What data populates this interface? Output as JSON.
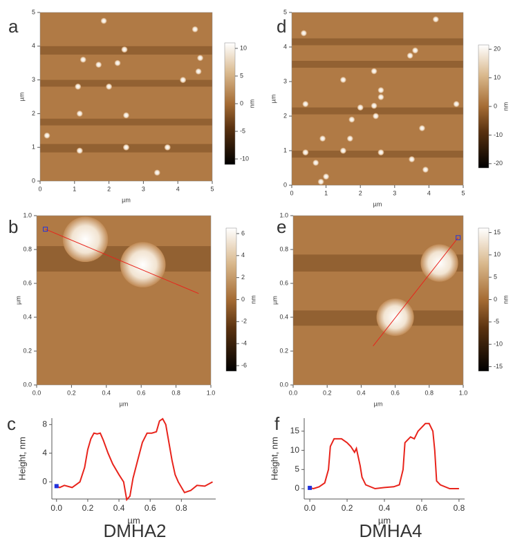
{
  "chart_data": [
    {
      "type": "image",
      "panel": "a",
      "xlim": [
        0,
        5
      ],
      "ylim": [
        0,
        5
      ],
      "xticks": [
        0,
        1,
        2,
        3,
        4,
        5
      ],
      "yticks": [
        0,
        1,
        2,
        3,
        4,
        5
      ],
      "xlabel": "µm",
      "ylabel": "µm",
      "colorbar": {
        "lim": [
          -11,
          11
        ],
        "ticks": [
          10,
          5,
          0,
          -5,
          -10
        ],
        "label": "nm"
      }
    },
    {
      "type": "image",
      "panel": "d",
      "xlim": [
        0,
        5
      ],
      "ylim": [
        0,
        5
      ],
      "xticks": [
        0,
        1,
        2,
        3,
        4,
        5
      ],
      "yticks": [
        0,
        1,
        2,
        3,
        4,
        5
      ],
      "xlabel": "µm",
      "ylabel": "µm",
      "colorbar": {
        "lim": [
          -21.5,
          21.5
        ],
        "ticks": [
          20,
          10,
          0,
          -10,
          -20
        ],
        "label": "nm"
      }
    },
    {
      "type": "image",
      "panel": "b",
      "xlim": [
        0,
        1
      ],
      "ylim": [
        0,
        1
      ],
      "xticks": [
        {
          "value": 0,
          "label": "0.0"
        },
        0.2,
        0.4,
        0.6,
        0.8,
        {
          "value": 1,
          "label": "1.0"
        }
      ],
      "yticks": [
        {
          "value": 0,
          "label": "0.0"
        },
        0.2,
        0.4,
        0.6,
        0.8,
        {
          "value": 1,
          "label": "1.0"
        }
      ],
      "xlabel": "µm",
      "ylabel": "µm",
      "colorbar": {
        "lim": [
          -6.5,
          6.5
        ],
        "ticks": [
          6,
          4,
          2,
          0,
          -2,
          -4,
          -6
        ],
        "label": "nm"
      }
    },
    {
      "type": "image",
      "panel": "e",
      "xlim": [
        0,
        1
      ],
      "ylim": [
        0,
        1
      ],
      "xticks": [
        {
          "value": 0,
          "label": "0.0"
        },
        0.2,
        0.4,
        0.6,
        0.8,
        {
          "value": 1,
          "label": "1.0"
        }
      ],
      "yticks": [
        {
          "value": 0,
          "label": "0.0"
        },
        0.2,
        0.4,
        0.6,
        0.8,
        {
          "value": 1,
          "label": "1.0"
        }
      ],
      "xlabel": "µm",
      "ylabel": "µm",
      "colorbar": {
        "lim": [
          -16,
          16
        ],
        "ticks": [
          15,
          10,
          5,
          0,
          -5,
          -10,
          -15
        ],
        "label": "nm"
      }
    },
    {
      "type": "line",
      "panel": "c",
      "caption": "DMHA2",
      "xlabel": "µm",
      "ylabel": "Height, nm",
      "color": "#e8231b",
      "xlim": [
        -0.03,
        1.02
      ],
      "ylim": [
        -2.4,
        8.9
      ],
      "xticks": [
        {
          "value": 0,
          "label": "0.0"
        },
        0.2,
        0.4,
        0.6,
        0.8
      ],
      "yticks": [
        0,
        4,
        8
      ],
      "x": [
        0,
        0.02,
        0.05,
        0.1,
        0.15,
        0.18,
        0.2,
        0.22,
        0.24,
        0.26,
        0.28,
        0.3,
        0.33,
        0.36,
        0.4,
        0.43,
        0.45,
        0.47,
        0.49,
        0.52,
        0.55,
        0.58,
        0.61,
        0.64,
        0.66,
        0.68,
        0.7,
        0.72,
        0.74,
        0.76,
        0.78,
        0.82,
        0.86,
        0.9,
        0.95,
        1.0
      ],
      "values": [
        -0.6,
        -0.8,
        -0.5,
        -0.8,
        0,
        2,
        4.5,
        6,
        6.8,
        6.7,
        6.8,
        5.8,
        4,
        2.5,
        1,
        0,
        -2.5,
        -2,
        0.5,
        3,
        5.5,
        6.8,
        6.8,
        7,
        8.5,
        8.8,
        8,
        5.5,
        3,
        1,
        0,
        -1.5,
        -1.2,
        -0.5,
        -0.6,
        0
      ]
    },
    {
      "type": "line",
      "panel": "f",
      "caption": "DMHA4",
      "xlabel": "µm",
      "ylabel": "Height, nm",
      "color": "#e8231b",
      "xlim": [
        -0.03,
        0.83
      ],
      "ylim": [
        -2.7,
        18.4
      ],
      "xticks": [
        {
          "value": 0,
          "label": "0.0"
        },
        0.2,
        0.4,
        0.6,
        0.8
      ],
      "yticks": [
        0,
        5,
        10,
        15
      ],
      "x": [
        0,
        0.02,
        0.05,
        0.08,
        0.1,
        0.11,
        0.13,
        0.17,
        0.2,
        0.22,
        0.24,
        0.25,
        0.27,
        0.28,
        0.3,
        0.35,
        0.4,
        0.45,
        0.48,
        0.5,
        0.51,
        0.54,
        0.56,
        0.58,
        0.6,
        0.62,
        0.64,
        0.66,
        0.67,
        0.68,
        0.7,
        0.75,
        0.8
      ],
      "values": [
        0.2,
        0,
        0.5,
        1.5,
        5,
        11,
        13,
        13,
        12,
        11,
        9.5,
        10.5,
        6,
        3,
        1,
        0,
        0.3,
        0.5,
        1,
        5,
        12,
        13.5,
        13,
        15,
        16,
        17,
        17,
        15,
        10,
        2,
        1,
        0,
        0
      ]
    }
  ]
}
